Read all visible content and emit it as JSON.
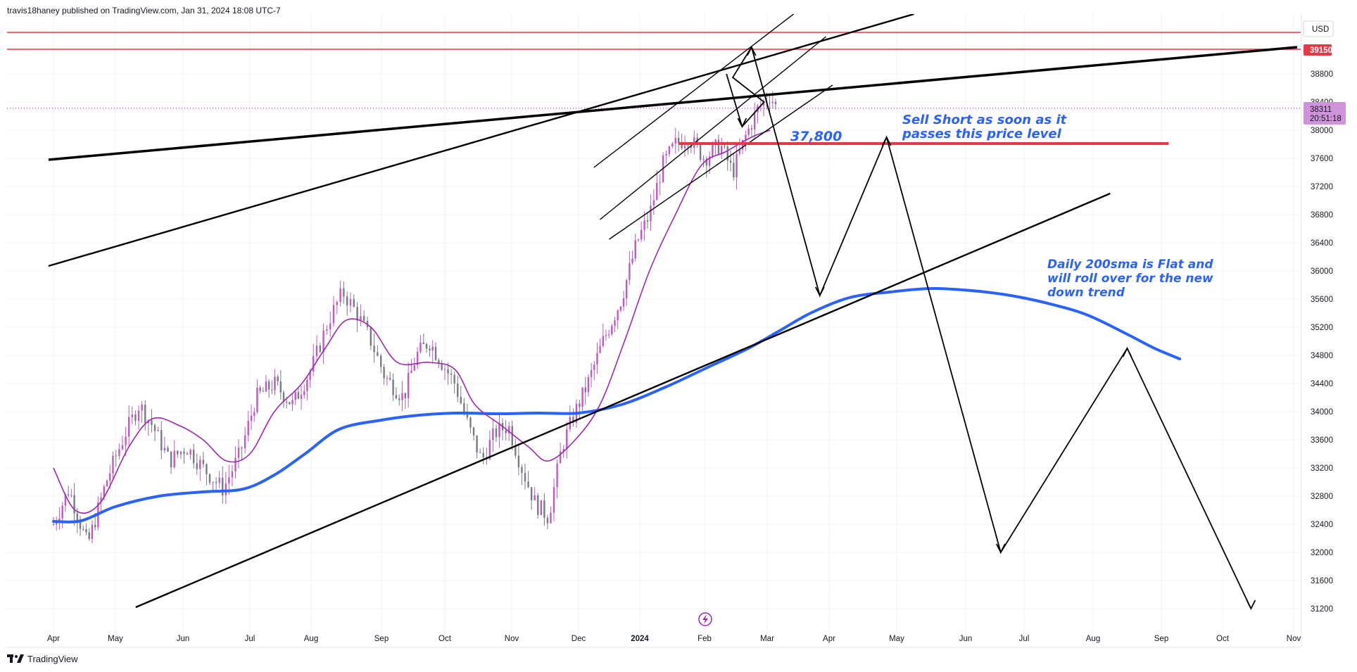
{
  "header": {
    "publisher": "travis18haney published on TradingView.com, Jan 31, 2024 18:08 UTC-7"
  },
  "footer": {
    "brand": "TradingView"
  },
  "colors": {
    "candle": "#787b86",
    "candle_up_accent": "#c058c8",
    "sma_short": "#9c27b0",
    "sma_200": "#2962ff",
    "resistance": "#e53947",
    "annotation_text": "#2962ff",
    "trendline": "#000000"
  },
  "chart_data": {
    "type": "candlestick",
    "currency": "USD",
    "y_ticks": [
      31200,
      31600,
      32000,
      32400,
      32800,
      33200,
      33600,
      34000,
      34400,
      34800,
      35200,
      35600,
      36000,
      36400,
      36800,
      37200,
      37600,
      38000,
      38400,
      38800
    ],
    "ylim": [
      31000,
      39400
    ],
    "x_ticks": [
      "Apr",
      "May",
      "Jun",
      "Jul",
      "Aug",
      "Sep",
      "Oct",
      "Nov",
      "Dec",
      "2024",
      "Feb",
      "Mar",
      "Apr",
      "May",
      "Jun",
      "Jul",
      "Aug",
      "Sep",
      "Oct",
      "Nov"
    ],
    "price_labels": {
      "current_price": "38311",
      "countdown": "20:51:18",
      "resistance_price": "39150"
    },
    "annotations": {
      "level_label": "37,800",
      "sell_note": [
        "Sell Short as soon as it",
        "passes this price level"
      ],
      "sma_note": [
        "Daily 200sma is Flat and",
        "will roll over for the new",
        "down trend"
      ]
    },
    "price_path": [
      {
        "t": 0.0,
        "p": 32400
      },
      {
        "t": 0.25,
        "p": 32900
      },
      {
        "t": 0.55,
        "p": 32100
      },
      {
        "t": 0.85,
        "p": 33000
      },
      {
        "t": 1.15,
        "p": 33700
      },
      {
        "t": 1.35,
        "p": 34100
      },
      {
        "t": 1.55,
        "p": 33800
      },
      {
        "t": 1.8,
        "p": 33300
      },
      {
        "t": 2.05,
        "p": 33500
      },
      {
        "t": 2.3,
        "p": 33200
      },
      {
        "t": 2.6,
        "p": 32900
      },
      {
        "t": 2.85,
        "p": 33400
      },
      {
        "t": 3.1,
        "p": 34200
      },
      {
        "t": 3.4,
        "p": 34400
      },
      {
        "t": 3.7,
        "p": 34100
      },
      {
        "t": 4.0,
        "p": 34600
      },
      {
        "t": 4.25,
        "p": 35300
      },
      {
        "t": 4.45,
        "p": 35700
      },
      {
        "t": 4.65,
        "p": 35400
      },
      {
        "t": 4.85,
        "p": 35000
      },
      {
        "t": 5.05,
        "p": 34500
      },
      {
        "t": 5.35,
        "p": 34200
      },
      {
        "t": 5.55,
        "p": 34800
      },
      {
        "t": 5.75,
        "p": 35000
      },
      {
        "t": 5.95,
        "p": 34700
      },
      {
        "t": 6.15,
        "p": 34400
      },
      {
        "t": 6.35,
        "p": 33800
      },
      {
        "t": 6.55,
        "p": 33300
      },
      {
        "t": 6.75,
        "p": 33700
      },
      {
        "t": 6.95,
        "p": 33800
      },
      {
        "t": 7.15,
        "p": 33200
      },
      {
        "t": 7.35,
        "p": 32700
      },
      {
        "t": 7.55,
        "p": 32500
      },
      {
        "t": 7.75,
        "p": 33500
      },
      {
        "t": 7.95,
        "p": 34000
      },
      {
        "t": 8.15,
        "p": 34400
      },
      {
        "t": 8.4,
        "p": 35000
      },
      {
        "t": 8.7,
        "p": 35600
      },
      {
        "t": 8.95,
        "p": 36400
      },
      {
        "t": 9.15,
        "p": 36800
      },
      {
        "t": 9.35,
        "p": 37500
      },
      {
        "t": 9.55,
        "p": 37800
      },
      {
        "t": 9.75,
        "p": 37900
      },
      {
        "t": 10.0,
        "p": 37600
      },
      {
        "t": 10.25,
        "p": 37800
      },
      {
        "t": 10.45,
        "p": 37400
      },
      {
        "t": 10.65,
        "p": 37900
      },
      {
        "t": 10.85,
        "p": 38300
      },
      {
        "t": 11.05,
        "p": 38500
      },
      {
        "t": 11.15,
        "p": 38311
      }
    ],
    "sma_short_path": [
      {
        "t": 0.0,
        "p": 33200
      },
      {
        "t": 0.35,
        "p": 32600
      },
      {
        "t": 0.75,
        "p": 32700
      },
      {
        "t": 1.2,
        "p": 33500
      },
      {
        "t": 1.55,
        "p": 33900
      },
      {
        "t": 1.95,
        "p": 33800
      },
      {
        "t": 2.3,
        "p": 33600
      },
      {
        "t": 2.65,
        "p": 33300
      },
      {
        "t": 3.0,
        "p": 33400
      },
      {
        "t": 3.4,
        "p": 34000
      },
      {
        "t": 3.85,
        "p": 34400
      },
      {
        "t": 4.2,
        "p": 34900
      },
      {
        "t": 4.5,
        "p": 35300
      },
      {
        "t": 4.85,
        "p": 35200
      },
      {
        "t": 5.25,
        "p": 34700
      },
      {
        "t": 5.75,
        "p": 34700
      },
      {
        "t": 6.15,
        "p": 34600
      },
      {
        "t": 6.45,
        "p": 34100
      },
      {
        "t": 6.85,
        "p": 33800
      },
      {
        "t": 7.25,
        "p": 33500
      },
      {
        "t": 7.55,
        "p": 33300
      },
      {
        "t": 7.95,
        "p": 33600
      },
      {
        "t": 8.35,
        "p": 34100
      },
      {
        "t": 8.75,
        "p": 35000
      },
      {
        "t": 9.15,
        "p": 36000
      },
      {
        "t": 9.55,
        "p": 36800
      },
      {
        "t": 9.95,
        "p": 37500
      },
      {
        "t": 10.35,
        "p": 37700
      },
      {
        "t": 10.75,
        "p": 37900
      },
      {
        "t": 11.05,
        "p": 38000
      }
    ],
    "sma200_path": [
      {
        "t": 0.0,
        "p": 32440
      },
      {
        "t": 0.45,
        "p": 32450
      },
      {
        "t": 1.0,
        "p": 32650
      },
      {
        "t": 1.65,
        "p": 32800
      },
      {
        "t": 2.3,
        "p": 32860
      },
      {
        "t": 2.9,
        "p": 32900
      },
      {
        "t": 3.4,
        "p": 33100
      },
      {
        "t": 3.9,
        "p": 33400
      },
      {
        "t": 4.4,
        "p": 33750
      },
      {
        "t": 5.0,
        "p": 33880
      },
      {
        "t": 5.6,
        "p": 33950
      },
      {
        "t": 6.2,
        "p": 33980
      },
      {
        "t": 6.8,
        "p": 33970
      },
      {
        "t": 7.4,
        "p": 33980
      },
      {
        "t": 8.0,
        "p": 33980
      },
      {
        "t": 8.7,
        "p": 34100
      },
      {
        "t": 9.4,
        "p": 34350
      },
      {
        "t": 10.1,
        "p": 34650
      },
      {
        "t": 10.7,
        "p": 34900
      },
      {
        "t": 11.2,
        "p": 35150
      },
      {
        "t": 11.7,
        "p": 35400
      },
      {
        "t": 12.3,
        "p": 35620
      },
      {
        "t": 12.9,
        "p": 35700
      },
      {
        "t": 13.5,
        "p": 35750
      },
      {
        "t": 14.1,
        "p": 35720
      },
      {
        "t": 14.7,
        "p": 35660
      },
      {
        "t": 15.3,
        "p": 35550
      },
      {
        "t": 15.9,
        "p": 35380
      },
      {
        "t": 16.5,
        "p": 35100
      },
      {
        "t": 16.9,
        "p": 34900
      },
      {
        "t": 17.3,
        "p": 34750
      }
    ],
    "trendlines": [
      {
        "name": "upper-long-trendline",
        "from": {
          "t": -0.08,
          "p": 37580
        },
        "to": {
          "t": 19.05,
          "p": 39180
        }
      },
      {
        "name": "mid-long-trendline",
        "from": {
          "t": -0.08,
          "p": 36070
        },
        "to": {
          "t": 13.25,
          "p": 39650
        }
      },
      {
        "name": "lower-support-trendline",
        "from": {
          "t": 1.3,
          "p": 31220
        },
        "to": {
          "t": 16.25,
          "p": 37100
        }
      },
      {
        "name": "channel-upper",
        "from": {
          "t": 8.25,
          "p": 37470
        },
        "to": {
          "t": 11.5,
          "p": 39700
        }
      },
      {
        "name": "channel-middle",
        "from": {
          "t": 8.35,
          "p": 36730
        },
        "to": {
          "t": 11.95,
          "p": 39330
        }
      },
      {
        "name": "channel-lower",
        "from": {
          "t": 8.5,
          "p": 36450
        },
        "to": {
          "t": 12.05,
          "p": 38640
        }
      }
    ],
    "resistance_lines": [
      {
        "name": "resistance-top",
        "price": 39390
      },
      {
        "name": "resistance-39150",
        "price": 39150
      }
    ],
    "level_line": {
      "price": 37810,
      "from_t": 9.6,
      "to_t": 17.12
    },
    "projection_path": [
      {
        "t": 10.35,
        "p": 38800
      },
      {
        "t": 10.6,
        "p": 38050
      },
      {
        "t": 10.95,
        "p": 38400
      },
      {
        "t": 10.45,
        "p": 38750
      },
      {
        "t": 10.75,
        "p": 39180
      },
      {
        "t": 11.85,
        "p": 35650
      },
      {
        "t": 12.85,
        "p": 37900
      },
      {
        "t": 14.6,
        "p": 32000
      },
      {
        "t": 16.5,
        "p": 34900
      },
      {
        "t": 18.4,
        "p": 31200
      }
    ],
    "projection_arrowheads": [
      {
        "name": "arrowhead-down-1",
        "t": 10.6,
        "p": 38050,
        "dir": "down"
      },
      {
        "name": "arrowhead-up-1",
        "t": 10.75,
        "p": 39180,
        "dir": "up"
      },
      {
        "name": "arrowhead-down-2",
        "t": 11.85,
        "p": 35650,
        "dir": "down"
      },
      {
        "name": "arrowhead-up-2",
        "t": 12.85,
        "p": 37900,
        "dir": "up"
      },
      {
        "name": "arrowhead-down-3",
        "t": 14.6,
        "p": 32000,
        "dir": "down"
      },
      {
        "name": "arrowhead-up-3",
        "t": 16.5,
        "p": 34900,
        "dir": "up"
      },
      {
        "name": "arrowhead-down-4",
        "t": 18.4,
        "p": 31200,
        "dir": "down"
      }
    ]
  }
}
